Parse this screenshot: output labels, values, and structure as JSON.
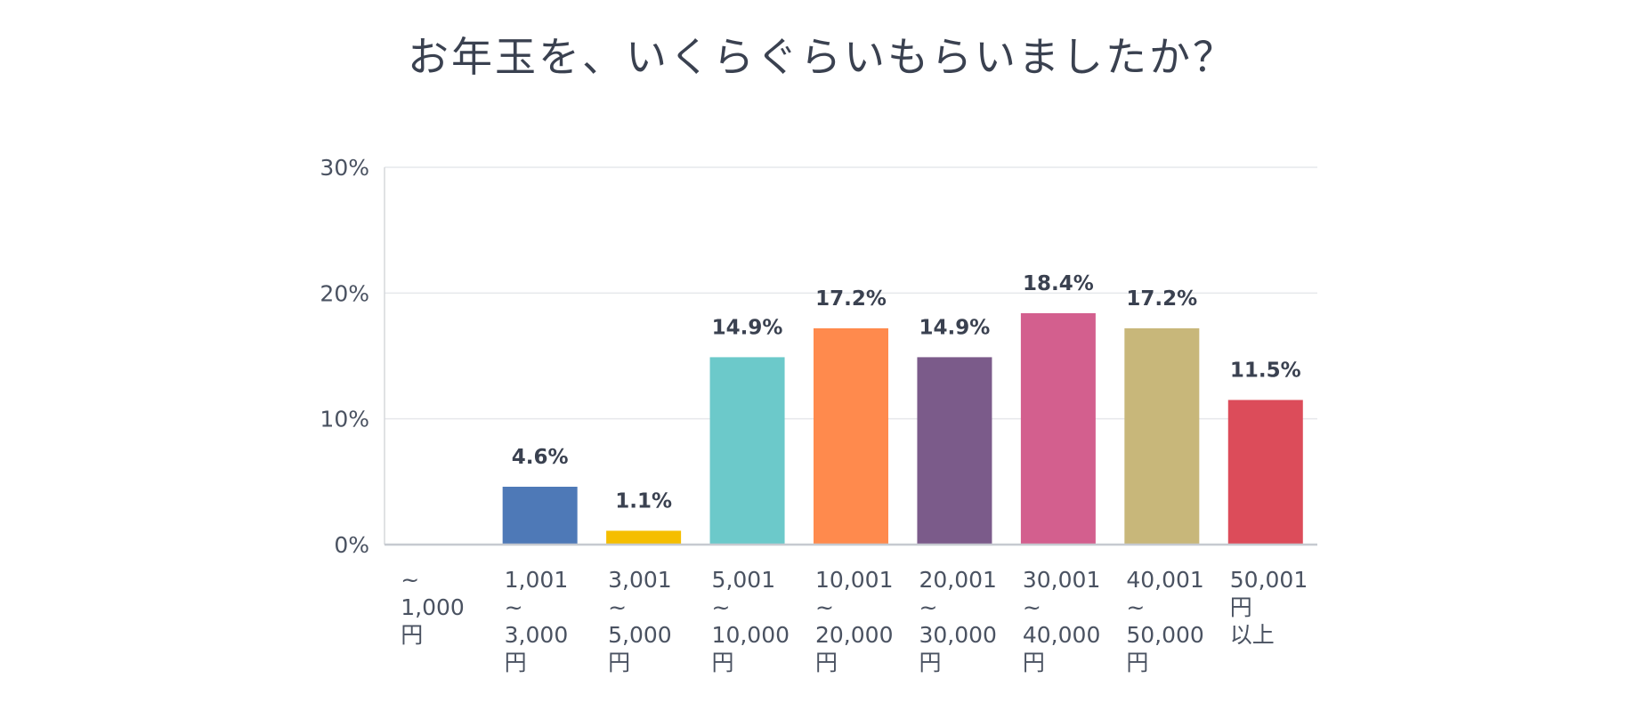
{
  "chart_data": {
    "type": "bar",
    "title": "お年玉を、いくらぐらいもらいましたか？",
    "categories": [
      [
        "~",
        "1,000",
        "円"
      ],
      [
        "1,001",
        "~",
        "3,000",
        "円"
      ],
      [
        "3,001",
        "~",
        "5,000",
        "円"
      ],
      [
        "5,001",
        "~",
        "10,000",
        "円"
      ],
      [
        "10,001",
        "~",
        "20,000",
        "円"
      ],
      [
        "20,001",
        "~",
        "30,000",
        "円"
      ],
      [
        "30,001",
        "~",
        "40,000",
        "円"
      ],
      [
        "40,001",
        "~",
        "50,000",
        "円"
      ],
      [
        "50,001",
        "円",
        "以上"
      ]
    ],
    "values": [
      0,
      4.6,
      1.1,
      14.9,
      17.2,
      14.9,
      18.4,
      17.2,
      11.5
    ],
    "value_labels": [
      "",
      "4.6%",
      "1.1%",
      "14.9%",
      "17.2%",
      "14.9%",
      "18.4%",
      "17.2%",
      "11.5%"
    ],
    "colors": [
      "#4e79b7",
      "#4e79b7",
      "#f5be00",
      "#6cc9ca",
      "#ff8a4d",
      "#7b5b8a",
      "#d35f8e",
      "#c8b77a",
      "#dc4c5a"
    ],
    "y_ticks": [
      "0%",
      "10%",
      "20%",
      "30%"
    ],
    "y_tick_values": [
      0,
      10,
      20,
      30
    ],
    "ylim": [
      0,
      30
    ],
    "xlabel": "",
    "ylabel": "",
    "grid": true,
    "legend": "none"
  }
}
